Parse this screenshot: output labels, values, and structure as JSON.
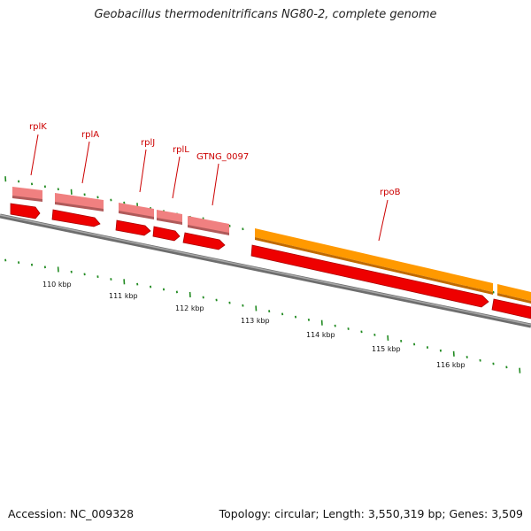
{
  "title": "Geobacillus thermodenitrificans NG80-2, complete genome",
  "footer": {
    "accession": "Accession: NC_009328",
    "summary": "Topology: circular; Length: 3,550,319 bp; Genes: 3,509"
  },
  "colors": {
    "gene_red": "#ee0000",
    "gene_pink": "#f08080",
    "gene_orange": "#ff9900",
    "backbone": "#808080",
    "ticks": "#228B22",
    "label": "#cc0000"
  },
  "scale": {
    "labels": [
      "110 kbp",
      "111 kbp",
      "112 kbp",
      "113 kbp",
      "114 kbp",
      "115 kbp",
      "116 kbp"
    ]
  },
  "genes": [
    {
      "name": "rplK"
    },
    {
      "name": "rplA"
    },
    {
      "name": "rplJ"
    },
    {
      "name": "rplL"
    },
    {
      "name": "GTNG_0097"
    },
    {
      "name": "rpoB"
    }
  ]
}
